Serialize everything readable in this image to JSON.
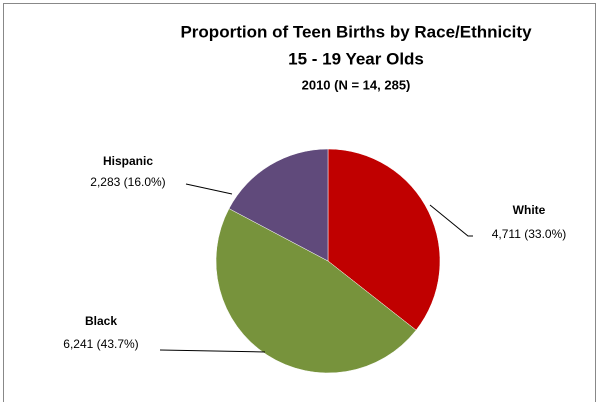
{
  "chart_data": {
    "type": "pie",
    "title": "Proportion of Teen Births by Race/Ethnicity",
    "subtitle": "15 - 19 Year Olds",
    "caption": "2010 (N = 14, 285)",
    "categories": [
      "White",
      "Black",
      "Hispanic"
    ],
    "values": [
      4711,
      6241,
      2283
    ],
    "value_labels": [
      "4,711 (33.0%)",
      "6,241 (43.7%)",
      "2,283 (16.0%)"
    ],
    "colors": [
      "#c00000",
      "#77933c",
      "#604a7b"
    ]
  }
}
